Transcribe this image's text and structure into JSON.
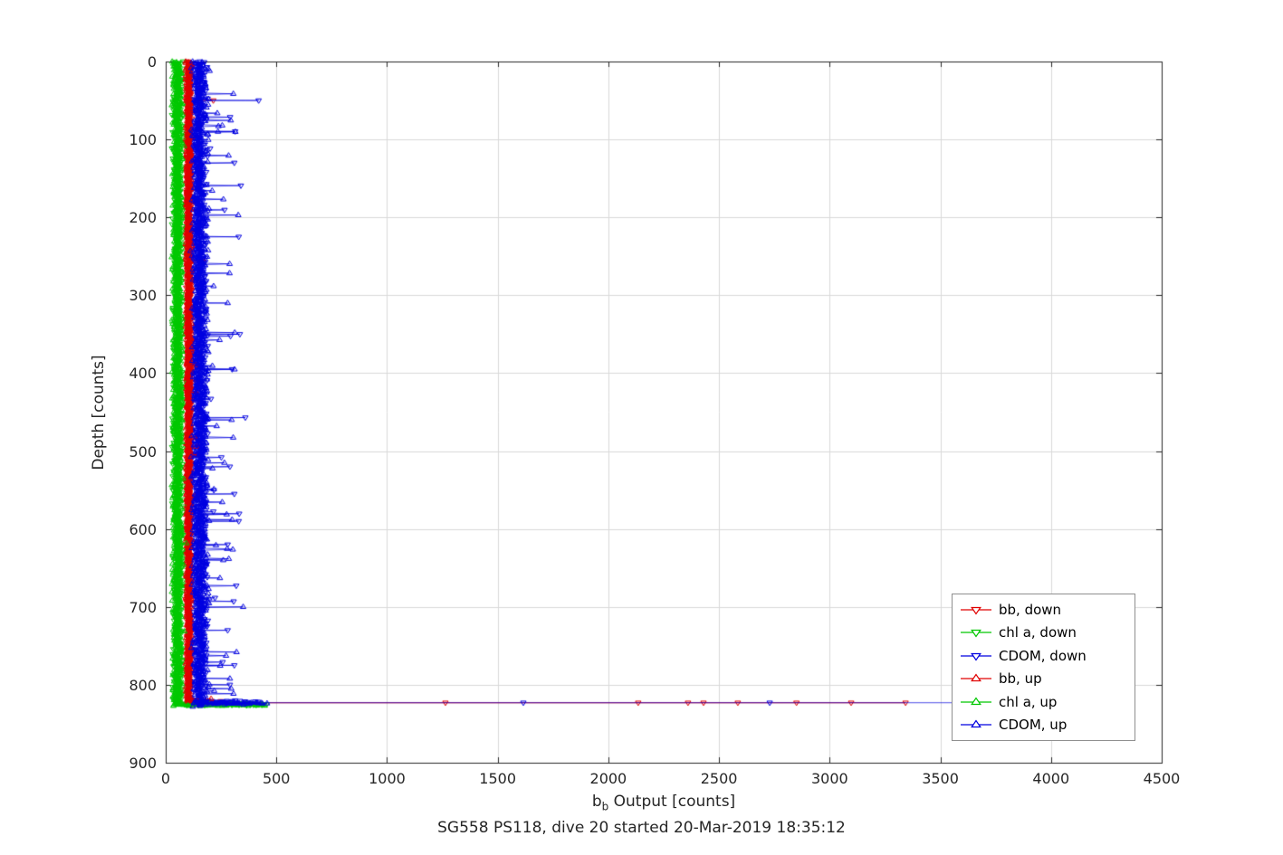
{
  "figure": {
    "title": "SG558 PS118, dive 20 started 20-Mar-2019 18:35:12"
  },
  "chart_data": {
    "type": "scatter",
    "title": "SG558 PS118, dive 20 started 20-Mar-2019 18:35:12",
    "xlabel": "b_b Output [counts]",
    "xlabel_parts": {
      "pre": "b",
      "sub": "b",
      "post": " Output [counts]"
    },
    "ylabel": "Depth [counts]",
    "xlim": [
      0,
      4500
    ],
    "ylim": [
      0,
      900
    ],
    "y_reversed": true,
    "grid": true,
    "legend_position": "lower-right-inside",
    "xticks": [
      0,
      500,
      1000,
      1500,
      2000,
      2500,
      3000,
      3500,
      4000,
      4500
    ],
    "yticks": [
      0,
      100,
      200,
      300,
      400,
      500,
      600,
      700,
      800,
      900
    ],
    "colors": {
      "bb": "#e00000",
      "chl": "#00c800",
      "cdom": "#0000e0",
      "grid": "#d9d9d9",
      "axis": "#262626"
    },
    "series": [
      {
        "name": "bb, down",
        "color": "#e00000",
        "marker": "triangle-down",
        "band": {
          "x_center": 105,
          "x_jitter": 16,
          "depth_min": 0,
          "depth_max": 823,
          "n": 900,
          "spike_prob": 0.008,
          "spike_max": 60
        },
        "outliers": [
          [
            215,
            50
          ],
          [
            1264,
            823
          ],
          [
            2135,
            823
          ],
          [
            2360,
            823
          ],
          [
            2430,
            823
          ],
          [
            2585,
            823
          ],
          [
            2850,
            823
          ],
          [
            3097,
            823
          ],
          [
            3343,
            823
          ]
        ],
        "clusters": [
          {
            "depth": 822,
            "x_min": 110,
            "x_max": 240,
            "n": 12
          }
        ]
      },
      {
        "name": "chl a, down",
        "color": "#00c800",
        "marker": "triangle-down",
        "band": {
          "x_center": 55,
          "x_jitter": 28,
          "depth_min": 0,
          "depth_max": 824,
          "n": 900,
          "spike_prob": 0.004,
          "spike_max": 30
        },
        "outliers": [
          [
            300,
            825
          ],
          [
            385,
            825
          ],
          [
            456,
            825
          ]
        ],
        "clusters": [
          {
            "depth": 825,
            "x_min": 60,
            "x_max": 450,
            "n": 50
          }
        ]
      },
      {
        "name": "CDOM, down",
        "color": "#0000e0",
        "marker": "triangle-down",
        "band": {
          "x_center": 150,
          "x_jitter": 42,
          "depth_min": 0,
          "depth_max": 823,
          "n": 900,
          "spike_prob": 0.03,
          "spike_max": 170
        },
        "outliers": [
          [
            420,
            50
          ],
          [
            310,
            130
          ],
          [
            330,
            225
          ],
          [
            335,
            350
          ],
          [
            300,
            395
          ],
          [
            360,
            457
          ],
          [
            290,
            520
          ],
          [
            310,
            555
          ],
          [
            330,
            590
          ],
          [
            280,
            620
          ],
          [
            307,
            693
          ],
          [
            280,
            730
          ],
          [
            310,
            775
          ],
          [
            290,
            800
          ],
          [
            1616,
            823
          ],
          [
            2729,
            823
          ],
          [
            3570,
            823
          ]
        ],
        "clusters": [
          {
            "depth": 821,
            "x_min": 130,
            "x_max": 420,
            "n": 15
          }
        ]
      },
      {
        "name": "bb, up",
        "color": "#e00000",
        "marker": "triangle-up",
        "band": {
          "x_center": 103,
          "x_jitter": 15,
          "depth_min": 0,
          "depth_max": 826,
          "n": 900,
          "spike_prob": 0.006,
          "spike_max": 50
        },
        "outliers": [
          [
            205,
            818
          ]
        ],
        "clusters": []
      },
      {
        "name": "chl a, up",
        "color": "#00c800",
        "marker": "triangle-up",
        "band": {
          "x_center": 52,
          "x_jitter": 26,
          "depth_min": 0,
          "depth_max": 827,
          "n": 900,
          "spike_prob": 0.004,
          "spike_max": 30
        },
        "outliers": [
          [
            350,
            826
          ],
          [
            430,
            826
          ]
        ],
        "clusters": [
          {
            "depth": 826,
            "x_min": 70,
            "x_max": 440,
            "n": 30
          }
        ]
      },
      {
        "name": "CDOM, up",
        "color": "#0000e0",
        "marker": "triangle-up",
        "band": {
          "x_center": 155,
          "x_jitter": 45,
          "depth_min": 0,
          "depth_max": 828,
          "n": 900,
          "spike_prob": 0.035,
          "spike_max": 160
        },
        "outliers": [
          [
            236,
            90
          ],
          [
            280,
            310
          ],
          [
            312,
            348
          ],
          [
            298,
            460
          ],
          [
            265,
            515
          ],
          [
            300,
            588
          ],
          [
            260,
            640
          ],
          [
            245,
            663
          ],
          [
            350,
            700
          ],
          [
            320,
            758
          ],
          [
            290,
            792
          ]
        ],
        "clusters": [
          {
            "depth": 824,
            "x_min": 130,
            "x_max": 455,
            "n": 28
          }
        ]
      }
    ]
  }
}
